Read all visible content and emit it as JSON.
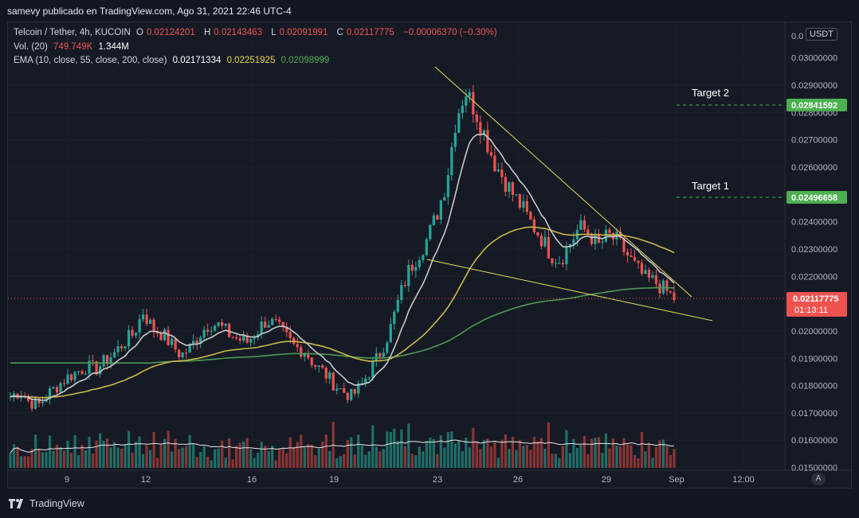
{
  "header": {
    "text": "samevy publicado en TradingView.com, Ago 31, 2021 22:46 UTC-4"
  },
  "legend": {
    "symbol": "Telcoin / Tether, 4h, KUCOIN",
    "o_label": "O",
    "o_value": "0.02124201",
    "h_label": "H",
    "h_value": "0.02143463",
    "l_label": "L",
    "l_value": "0.02091991",
    "c_label": "C",
    "c_value": "0.02117775",
    "change": "−0.00006370 (−0.30%)",
    "vol_label": "Vol. (20)",
    "vol_value": "749.749K",
    "vol_ma": "1.344M",
    "ema_label": "EMA (10, close, 55, close, 200, close)",
    "ema10": "0.02171334",
    "ema55": "0.02251925",
    "ema200": "0.02098999"
  },
  "currency": "USDT",
  "footer": {
    "brand": "TradingView"
  },
  "auto_label": "A",
  "colors": {
    "up": "#26a69a",
    "down": "#ef5350",
    "ema10": "#c8c8c8",
    "ema55": "#c9b84a",
    "ema200": "#4c9a52",
    "trendline": "#e8df5a",
    "target": "#4caf50"
  },
  "chart_data": {
    "type": "candlestick",
    "timeframe": "4h",
    "y_axis": {
      "ylim": [
        0.0149,
        0.0313
      ],
      "ticks": [
        "0.01500000",
        "0.01600000",
        "0.01700000",
        "0.01800000",
        "0.01900000",
        "0.02000000",
        "0.02200000",
        "0.02300000",
        "0.02400000",
        "0.02600000",
        "0.02700000",
        "0.02800000",
        "0.02900000",
        "0.03000000"
      ],
      "top_partial": "0.0"
    },
    "x_axis": {
      "ticks": [
        "9",
        "12",
        "16",
        "19",
        "23",
        "26",
        "29",
        "Sep",
        "12:00"
      ]
    },
    "last_price": {
      "value": "0.02117775",
      "countdown": "01:13:11"
    },
    "targets": [
      {
        "name": "Target 2",
        "value": "0.02841592"
      },
      {
        "name": "Target 1",
        "value": "0.02496658"
      }
    ],
    "price_path": [
      0.0176,
      0.0178,
      0.0174,
      0.0173,
      0.0177,
      0.018,
      0.0183,
      0.0185,
      0.0187,
      0.0186,
      0.0189,
      0.0192,
      0.0196,
      0.0199,
      0.0207,
      0.0201,
      0.0199,
      0.0195,
      0.0191,
      0.0194,
      0.0199,
      0.0203,
      0.0202,
      0.0199,
      0.0197,
      0.0196,
      0.02,
      0.0204,
      0.0202,
      0.0198,
      0.0194,
      0.0193,
      0.0188,
      0.0185,
      0.0181,
      0.0178,
      0.0176,
      0.018,
      0.0186,
      0.0192,
      0.02,
      0.0212,
      0.0222,
      0.0228,
      0.0234,
      0.0243,
      0.0255,
      0.0278,
      0.0288,
      0.0281,
      0.0272,
      0.0262,
      0.0256,
      0.025,
      0.0245,
      0.0239,
      0.0234,
      0.0228,
      0.0226,
      0.0232,
      0.0238,
      0.0236,
      0.0231,
      0.0235,
      0.0233,
      0.0228,
      0.0223,
      0.0219,
      0.0218,
      0.0215,
      0.0212
    ]
  }
}
